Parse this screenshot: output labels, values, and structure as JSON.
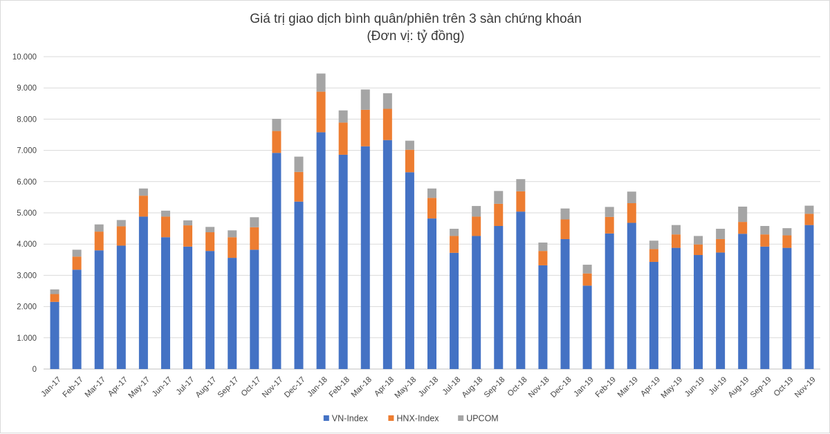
{
  "chart_data": {
    "type": "bar",
    "stacked": true,
    "title": "Giá trị giao dịch bình quân/phiên trên 3 sàn chứng khoán",
    "subtitle": "(Đơn vị: tỷ đồng)",
    "xlabel": "",
    "ylabel": "",
    "ylim": [
      0,
      10000
    ],
    "y_ticks": [
      "0",
      "1.000",
      "2.000",
      "3.000",
      "4.000",
      "5.000",
      "6.000",
      "7.000",
      "8.000",
      "9.000",
      "10.000"
    ],
    "grid": true,
    "legend_position": "bottom",
    "categories": [
      "Jan-17",
      "Feb-17",
      "Mar-17",
      "Apr-17",
      "May-17",
      "Jun-17",
      "Jul-17",
      "Aug-17",
      "Sep-17",
      "Oct-17",
      "Nov-17",
      "Dec-17",
      "Jan-18",
      "Feb-18",
      "Mar-18",
      "Apr-18",
      "May-18",
      "Jun-18",
      "Jul-18",
      "Aug-18",
      "Sep-18",
      "Oct-18",
      "Nov-18",
      "Dec-18",
      "Jan-19",
      "Feb-19",
      "Mar-19",
      "Apr-19",
      "May-19",
      "Jun-19",
      "Jul-19",
      "Aug-19",
      "Sep-19",
      "Oct-19",
      "Nov-19"
    ],
    "series": [
      {
        "name": "VN-Index",
        "color": "#4472c4",
        "values": [
          2150,
          3180,
          3800,
          3950,
          4880,
          4220,
          3920,
          3780,
          3560,
          3820,
          6920,
          5360,
          7580,
          6860,
          7130,
          7330,
          6300,
          4820,
          3720,
          4260,
          4580,
          5040,
          3320,
          4160,
          2670,
          4340,
          4680,
          3430,
          3880,
          3650,
          3730,
          4330,
          3920,
          3880,
          4610
        ]
      },
      {
        "name": "HNX-Index",
        "color": "#ed7d31",
        "values": [
          250,
          420,
          600,
          620,
          670,
          660,
          680,
          600,
          660,
          720,
          700,
          950,
          1300,
          1030,
          1170,
          1000,
          720,
          660,
          540,
          620,
          710,
          650,
          460,
          630,
          390,
          530,
          630,
          410,
          430,
          340,
          430,
          380,
          390,
          400,
          360
        ]
      },
      {
        "name": "UPCOM",
        "color": "#a5a5a5",
        "values": [
          150,
          220,
          230,
          200,
          230,
          190,
          160,
          170,
          220,
          320,
          390,
          490,
          580,
          390,
          650,
          500,
          290,
          300,
          230,
          340,
          410,
          390,
          270,
          350,
          280,
          320,
          370,
          270,
          300,
          270,
          330,
          490,
          270,
          230,
          260
        ]
      }
    ]
  }
}
